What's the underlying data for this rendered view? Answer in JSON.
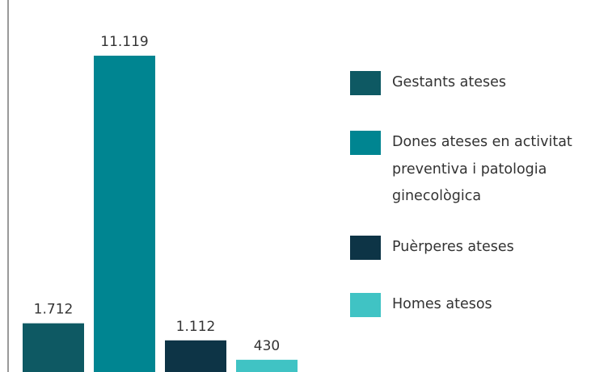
{
  "chart_data": {
    "type": "bar",
    "series": [
      {
        "name": "Gestants ateses",
        "color": "#0e5963",
        "values": [
          1712
        ],
        "value_labels": [
          "1.712"
        ]
      },
      {
        "name": "Dones ateses en activitat preventiva i patologia ginecològica",
        "color": "#008591",
        "values": [
          11119
        ],
        "value_labels": [
          "11.119"
        ]
      },
      {
        "name": "Puèrperes ateses",
        "color": "#0d3446",
        "values": [
          1112
        ],
        "value_labels": [
          "1.112"
        ]
      },
      {
        "name": "Homes atesos",
        "color": "#40c3c4",
        "values": [
          430
        ],
        "value_labels": [
          "430"
        ]
      }
    ]
  }
}
